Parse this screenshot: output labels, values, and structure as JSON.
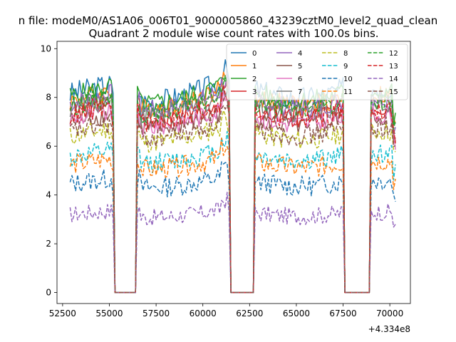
{
  "figure": {
    "suptitle": "n file: modeM0/AS1A06_006T01_9000005860_43239cztM0_level2_quad_clean",
    "title": "Quadrant 2 module wise count rates with 100.0s bins."
  },
  "chart_data": {
    "type": "line",
    "title": "Quadrant 2 module wise count rates with 100.0s bins.",
    "xlabel": "",
    "ylabel": "",
    "x_offset_label": "+4.334e8",
    "xlim": [
      52200,
      71100
    ],
    "ylim": [
      -0.45,
      10.3
    ],
    "xticks": [
      52500,
      55000,
      57500,
      60000,
      62500,
      65000,
      67500,
      70000
    ],
    "xtick_labels": [
      "52500",
      "55000",
      "57500",
      "60000",
      "62500",
      "65000",
      "67500",
      "70000"
    ],
    "yticks": [
      0,
      2,
      4,
      6,
      8,
      10
    ],
    "ytick_labels": [
      "0",
      "2",
      "4",
      "6",
      "8",
      "10"
    ],
    "bin_seconds": 100,
    "x_start": 52900,
    "x_end": 70300,
    "gaps": [
      [
        55200,
        56500
      ],
      [
        61400,
        62800
      ],
      [
        67500,
        69000
      ]
    ],
    "gap_value": 0,
    "grid": false,
    "legend_position": "top-right",
    "legend_columns": 4,
    "series": [
      {
        "name": "0",
        "color": "#1f77b4",
        "dash": "solid",
        "level": 8.4,
        "amplitude": 0.35
      },
      {
        "name": "1",
        "color": "#ff7f0e",
        "dash": "solid",
        "level": 8.1,
        "amplitude": 0.3
      },
      {
        "name": "2",
        "color": "#2ca02c",
        "dash": "solid",
        "level": 8.3,
        "amplitude": 0.3
      },
      {
        "name": "3",
        "color": "#d62728",
        "dash": "solid",
        "level": 7.6,
        "amplitude": 0.3
      },
      {
        "name": "4",
        "color": "#9467bd",
        "dash": "solid",
        "level": 8.0,
        "amplitude": 0.3
      },
      {
        "name": "5",
        "color": "#8c564b",
        "dash": "solid",
        "level": 7.2,
        "amplitude": 0.3
      },
      {
        "name": "6",
        "color": "#e377c2",
        "dash": "solid",
        "level": 7.3,
        "amplitude": 0.3
      },
      {
        "name": "7",
        "color": "#7f7f7f",
        "dash": "solid",
        "level": 7.8,
        "amplitude": 0.3
      },
      {
        "name": "8",
        "color": "#bcbd22",
        "dash": "dashed",
        "level": 6.6,
        "amplitude": 0.3
      },
      {
        "name": "9",
        "color": "#17becf",
        "dash": "dashed",
        "level": 5.7,
        "amplitude": 0.3
      },
      {
        "name": "10",
        "color": "#1f77b4",
        "dash": "dashed",
        "level": 4.6,
        "amplitude": 0.3
      },
      {
        "name": "11",
        "color": "#ff7f0e",
        "dash": "dashed",
        "level": 5.4,
        "amplitude": 0.3
      },
      {
        "name": "12",
        "color": "#2ca02c",
        "dash": "dashed",
        "level": 7.9,
        "amplitude": 0.3
      },
      {
        "name": "13",
        "color": "#d62728",
        "dash": "dashed",
        "level": 7.5,
        "amplitude": 0.3
      },
      {
        "name": "14",
        "color": "#9467bd",
        "dash": "dashed",
        "level": 3.3,
        "amplitude": 0.25
      },
      {
        "name": "15",
        "color": "#8c564b",
        "dash": "dashed",
        "level": 6.8,
        "amplitude": 0.3
      }
    ]
  }
}
